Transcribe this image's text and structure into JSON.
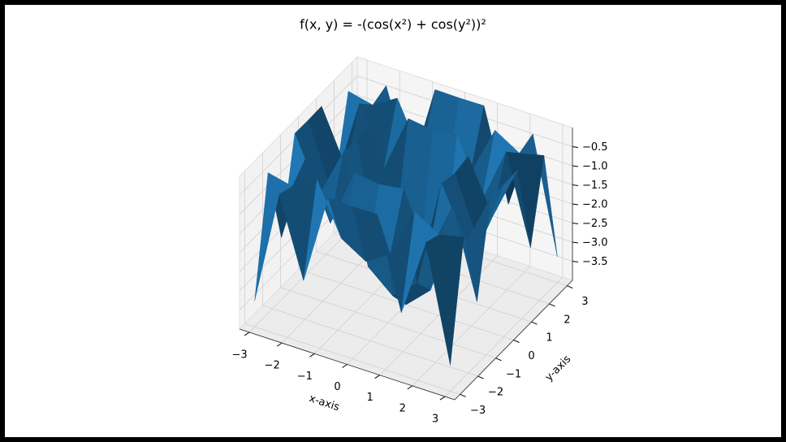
{
  "chart_data": {
    "type": "surface",
    "title": "f(x, y) = -(cos(x²) + cos(y²))²",
    "xlabel": "x-axis",
    "ylabel": "y-axis",
    "color": "#1f77b4",
    "xlim": [
      -3.3,
      3.3
    ],
    "ylim": [
      -3.3,
      3.3
    ],
    "zlim": [
      -4,
      0
    ],
    "xticks": [
      {
        "value": -3,
        "label": "−3"
      },
      {
        "value": -2,
        "label": "−2"
      },
      {
        "value": -1,
        "label": "−1"
      },
      0,
      1,
      2,
      3
    ],
    "yticks": [
      {
        "value": -3,
        "label": "−3"
      },
      {
        "value": -2,
        "label": "−2"
      },
      {
        "value": -1,
        "label": "−1"
      },
      0,
      1,
      2,
      3
    ],
    "zticks": [
      {
        "value": -3.5,
        "label": "−3.5"
      },
      {
        "value": -3,
        "label": "−3.0"
      },
      {
        "value": -2.5,
        "label": "−2.5"
      },
      {
        "value": -2,
        "label": "−2.0"
      },
      {
        "value": -1.5,
        "label": "−1.5"
      },
      {
        "value": -1,
        "label": "−1.0"
      },
      {
        "value": -0.5,
        "label": "−0.5"
      }
    ],
    "x": [
      -3,
      -2.25,
      -1.5,
      -0.75,
      0,
      0.75,
      1.5,
      2.25,
      3
    ],
    "y": [
      -3,
      -2.25,
      -1.5,
      -0.75,
      0,
      0.75,
      1.5,
      2.25,
      3
    ],
    "z": [
      [
        -3.32,
        -0.32,
        -2.37,
        0,
        -0.01,
        0,
        -2.37,
        -0.32,
        -3.32
      ],
      [
        -0.32,
        -0.47,
        -0.08,
        -1.41,
        -1.8,
        -1.41,
        -0.08,
        -0.47,
        -0.32
      ],
      [
        -2.37,
        -0.08,
        -1.58,
        -0.05,
        -0.14,
        -0.05,
        -1.58,
        -0.08,
        -2.37
      ],
      [
        0,
        -1.41,
        -0.05,
        -2.86,
        -3.41,
        -2.86,
        -0.05,
        -1.41,
        0
      ],
      [
        -0.01,
        -1.8,
        -0.14,
        -3.41,
        -4,
        -3.41,
        -0.14,
        -1.8,
        -0.01
      ],
      [
        0,
        -1.41,
        -0.05,
        -2.86,
        -3.41,
        -2.86,
        -0.05,
        -1.41,
        0
      ],
      [
        -2.37,
        -0.08,
        -1.58,
        -0.05,
        -0.14,
        -0.05,
        -1.58,
        -0.08,
        -2.37
      ],
      [
        -0.32,
        -0.47,
        -0.08,
        -1.41,
        -1.8,
        -1.41,
        -0.08,
        -0.47,
        -0.32
      ],
      [
        -3.32,
        -0.32,
        -2.37,
        0,
        -0.01,
        0,
        -2.37,
        -0.32,
        -3.32
      ]
    ]
  }
}
